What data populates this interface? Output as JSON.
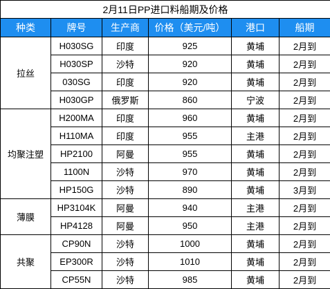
{
  "title": "2月11日PP进口料船期及价格",
  "header": [
    "种类",
    "牌号",
    "生产商",
    "价格（美元/吨）",
    "港口",
    "船期"
  ],
  "groups": [
    {
      "category": "拉丝",
      "rows": [
        [
          "H030SG",
          "印度",
          "925",
          "黄埔",
          "2月到"
        ],
        [
          "H030SP",
          "沙特",
          "920",
          "黄埔",
          "2月到"
        ],
        [
          "030SG",
          "印度",
          "920",
          "黄埔",
          "2月到"
        ],
        [
          "H030GP",
          "俄罗斯",
          "860",
          "宁波",
          "2月到"
        ]
      ]
    },
    {
      "category": "均聚注塑",
      "rows": [
        [
          "H200MA",
          "印度",
          "960",
          "黄埔",
          "2月到"
        ],
        [
          "H110MA",
          "印度",
          "955",
          "主港",
          "2月到"
        ],
        [
          "HP2100",
          "阿曼",
          "955",
          "黄埔",
          "2月到"
        ],
        [
          "1100N",
          "沙特",
          "970",
          "黄埔",
          "2月到"
        ],
        [
          "HP150G",
          "沙特",
          "890",
          "黄埔",
          "3月到"
        ]
      ]
    },
    {
      "category": "薄膜",
      "rows": [
        [
          "HP3104K",
          "阿曼",
          "940",
          "主港",
          "2月到"
        ],
        [
          "HP4128",
          "阿曼",
          "950",
          "主港",
          "2月到"
        ]
      ]
    },
    {
      "category": "共聚",
      "rows": [
        [
          "CP90N",
          "沙特",
          "1000",
          "黄埔",
          "2月到"
        ],
        [
          "EP300R",
          "沙特",
          "1010",
          "黄埔",
          "2月到"
        ],
        [
          "CP55N",
          "沙特",
          "985",
          "黄埔",
          "2月到"
        ]
      ]
    }
  ]
}
